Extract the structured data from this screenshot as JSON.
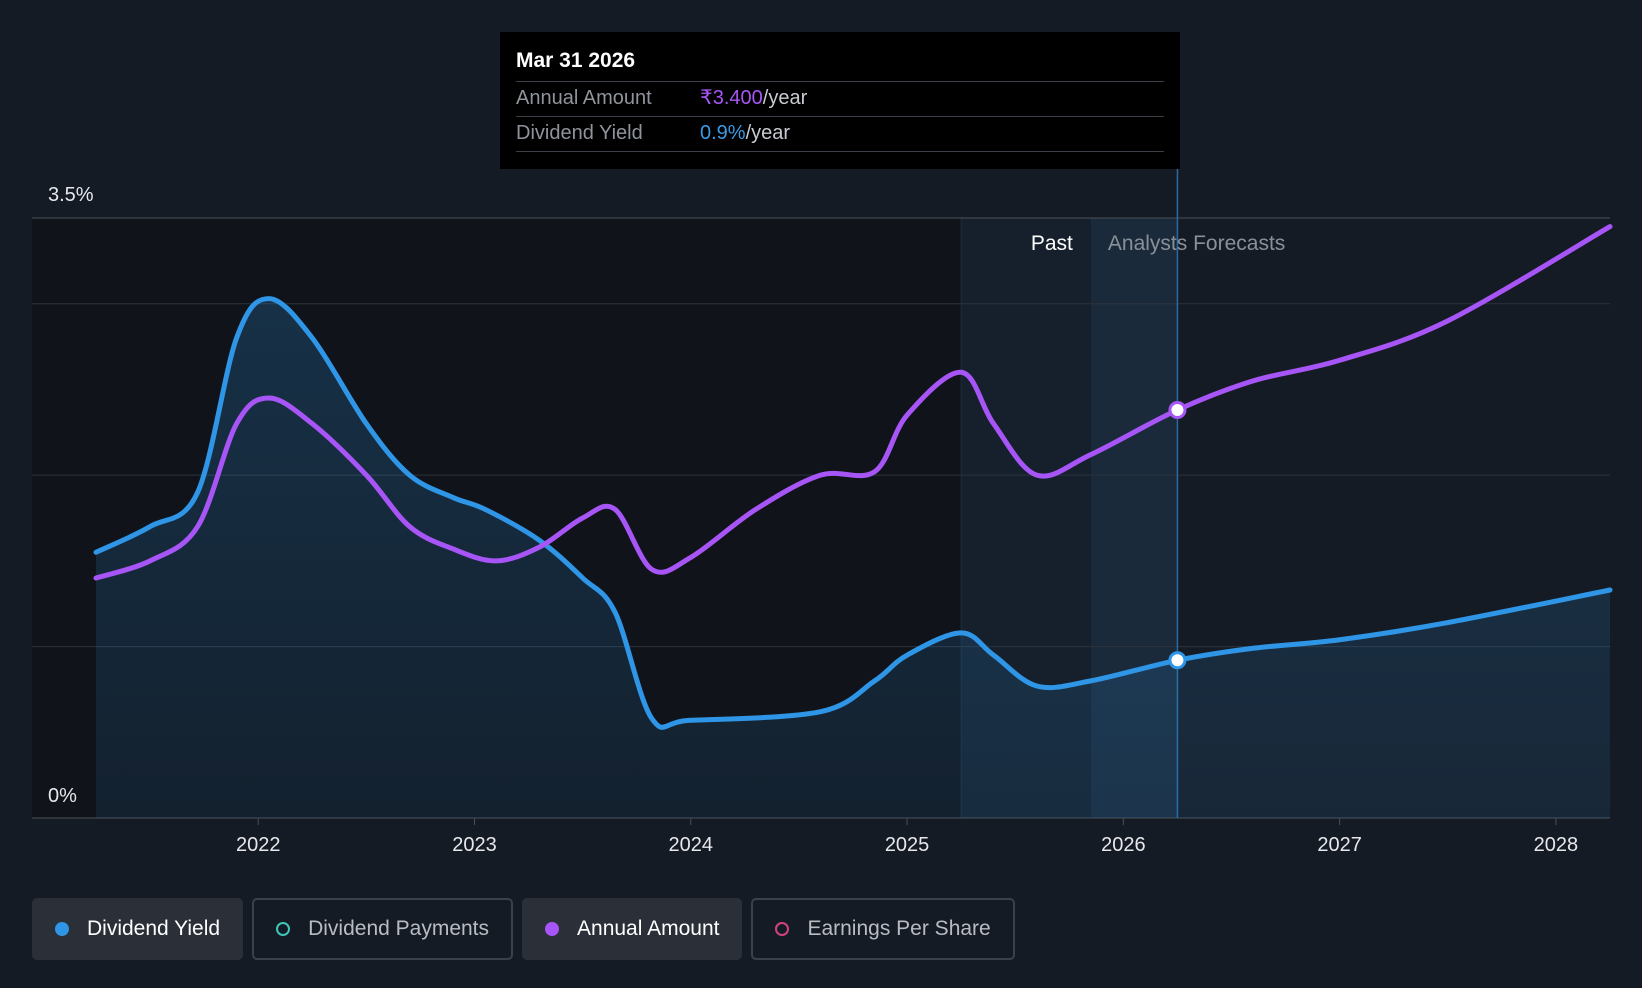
{
  "tooltip": {
    "date": "Mar 31 2026",
    "rows": [
      {
        "label": "Annual Amount",
        "value": "₹3.400",
        "unit": "/year"
      },
      {
        "label": "Dividend Yield",
        "value": "0.9%",
        "unit": "/year"
      }
    ]
  },
  "legend": {
    "items": [
      {
        "label": "Dividend Yield",
        "color": "#2f95e6",
        "active": true
      },
      {
        "label": "Dividend Payments",
        "color": "#3ec6b8",
        "active": false
      },
      {
        "label": "Annual Amount",
        "color": "#a855f7",
        "active": true
      },
      {
        "label": "Earnings Per Share",
        "color": "#d1437d",
        "active": false
      }
    ]
  },
  "chart_data": {
    "type": "line",
    "title": "",
    "xlabel": "",
    "ylabel": "",
    "x_range": [
      2021.25,
      2028.25
    ],
    "ylim": [
      0,
      3.5
    ],
    "y_tick_labels": [
      "3.5%",
      "0%"
    ],
    "x_ticks": [
      2022,
      2023,
      2024,
      2025,
      2026,
      2027,
      2028
    ],
    "x_tick_labels": [
      "2022",
      "2023",
      "2024",
      "2025",
      "2026",
      "2027",
      "2028"
    ],
    "gridlines": [
      1.0,
      2.0,
      3.0,
      3.5
    ],
    "past_label": "Past",
    "forecast_label": "Analysts Forecasts",
    "past_region_start": 2025.25,
    "forecast_start": 2025.85,
    "cursor_x": 2026.25,
    "series": [
      {
        "name": "Dividend Yield",
        "color": "#2f95e6",
        "filled": true,
        "points": [
          [
            2021.25,
            1.55
          ],
          [
            2021.5,
            1.7
          ],
          [
            2021.72,
            1.9
          ],
          [
            2021.9,
            2.8
          ],
          [
            2022.05,
            3.03
          ],
          [
            2022.25,
            2.8
          ],
          [
            2022.5,
            2.3
          ],
          [
            2022.7,
            2.0
          ],
          [
            2022.9,
            1.87
          ],
          [
            2023.05,
            1.8
          ],
          [
            2023.3,
            1.62
          ],
          [
            2023.5,
            1.4
          ],
          [
            2023.65,
            1.2
          ],
          [
            2023.82,
            0.58
          ],
          [
            2024.0,
            0.57
          ],
          [
            2024.6,
            0.62
          ],
          [
            2024.85,
            0.8
          ],
          [
            2025.0,
            0.95
          ],
          [
            2025.25,
            1.08
          ],
          [
            2025.4,
            0.95
          ],
          [
            2025.6,
            0.77
          ],
          [
            2025.85,
            0.8
          ],
          [
            2026.25,
            0.92
          ],
          [
            2026.6,
            0.99
          ],
          [
            2027.0,
            1.04
          ],
          [
            2027.5,
            1.14
          ],
          [
            2028.25,
            1.33
          ]
        ]
      },
      {
        "name": "Annual Amount",
        "color": "#a855f7",
        "filled": false,
        "points": [
          [
            2021.25,
            1.4
          ],
          [
            2021.5,
            1.5
          ],
          [
            2021.72,
            1.7
          ],
          [
            2021.9,
            2.3
          ],
          [
            2022.05,
            2.45
          ],
          [
            2022.25,
            2.3
          ],
          [
            2022.5,
            2.0
          ],
          [
            2022.7,
            1.7
          ],
          [
            2022.9,
            1.57
          ],
          [
            2023.1,
            1.5
          ],
          [
            2023.3,
            1.58
          ],
          [
            2023.5,
            1.75
          ],
          [
            2023.65,
            1.8
          ],
          [
            2023.82,
            1.45
          ],
          [
            2024.0,
            1.52
          ],
          [
            2024.3,
            1.8
          ],
          [
            2024.6,
            2.0
          ],
          [
            2024.85,
            2.02
          ],
          [
            2025.0,
            2.35
          ],
          [
            2025.25,
            2.6
          ],
          [
            2025.4,
            2.3
          ],
          [
            2025.6,
            2.0
          ],
          [
            2025.85,
            2.12
          ],
          [
            2026.25,
            2.38
          ],
          [
            2026.6,
            2.55
          ],
          [
            2027.0,
            2.67
          ],
          [
            2027.5,
            2.9
          ],
          [
            2028.25,
            3.45
          ]
        ]
      }
    ],
    "markers": [
      {
        "series": "Annual Amount",
        "x": 2026.25,
        "y": 2.38
      },
      {
        "series": "Dividend Yield",
        "x": 2026.25,
        "y": 0.92
      }
    ]
  }
}
